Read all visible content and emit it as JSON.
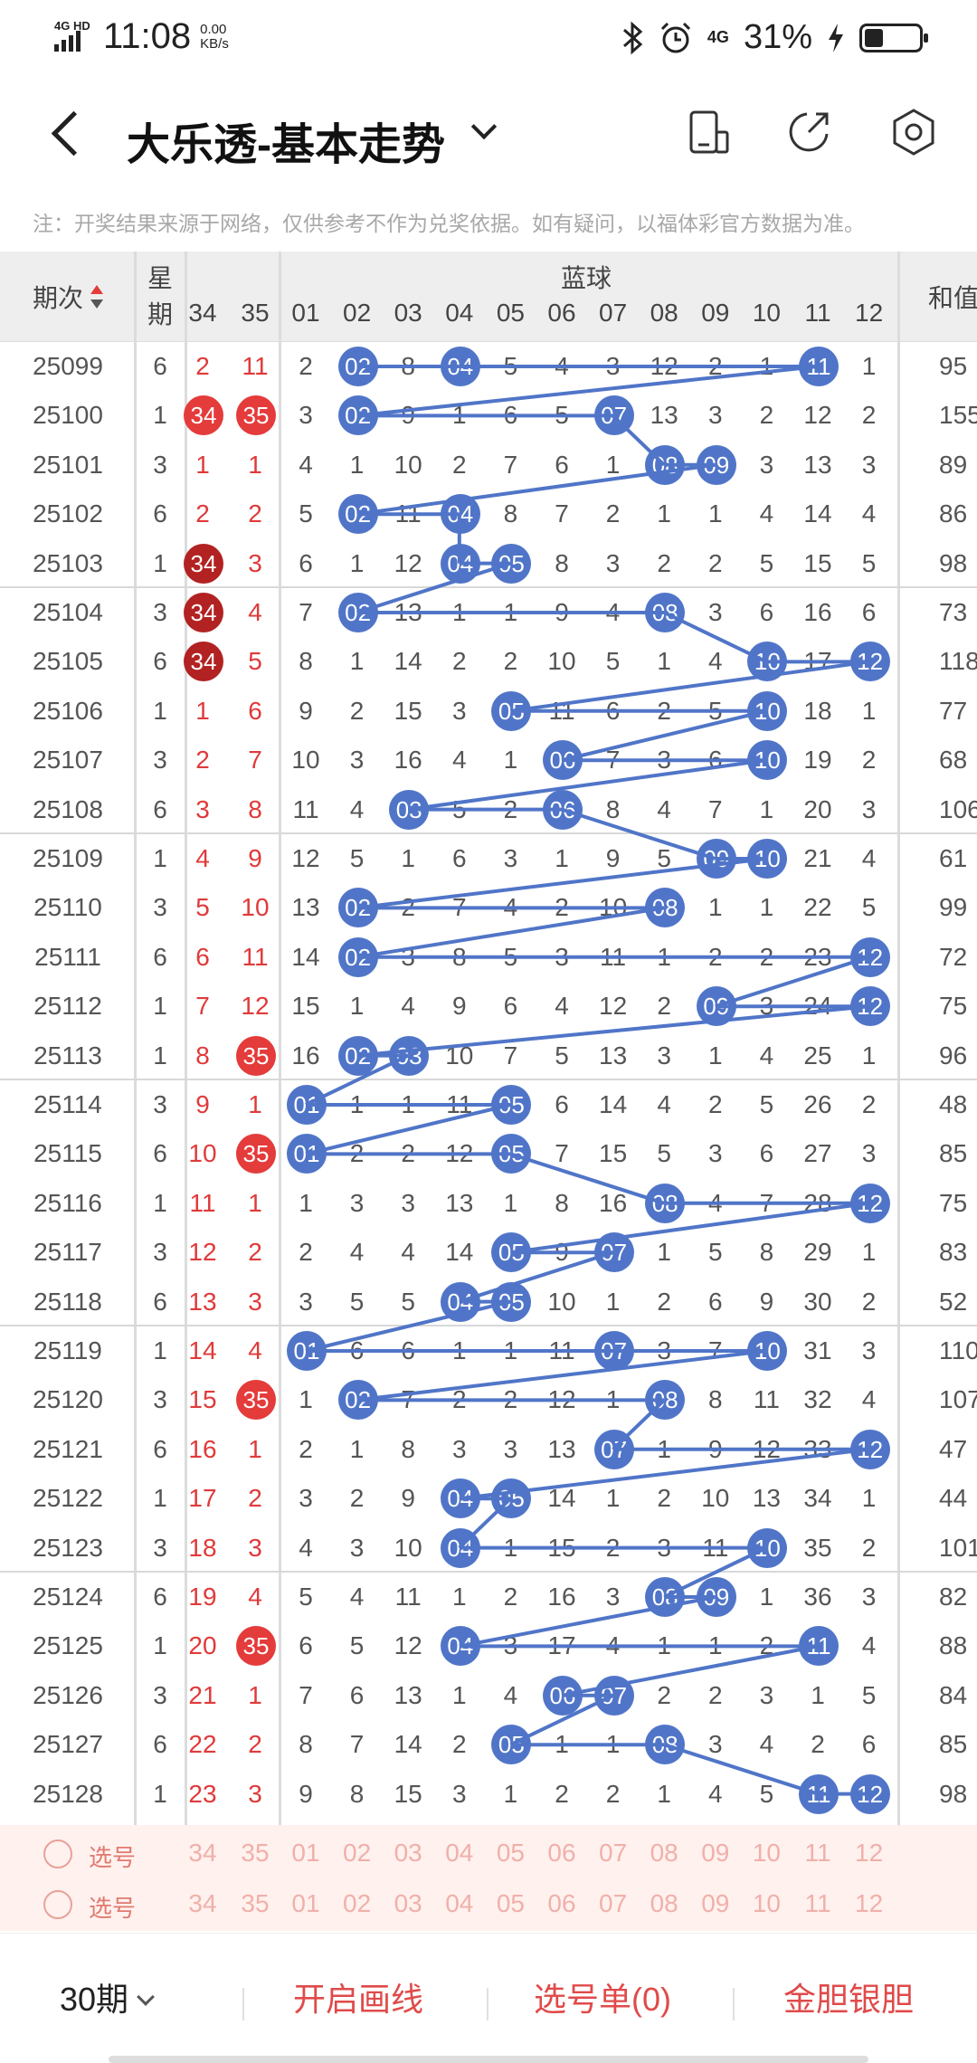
{
  "status": {
    "signal_label": "4G HD",
    "time": "11:08",
    "speed": "0.00",
    "speed_unit": "KB/s",
    "net": "4G",
    "battery": "31%",
    "battery_level": 0.31
  },
  "header": {
    "title": "大乐透-基本走势"
  },
  "notice": "注：开奖结果来源于网络，仅供参考不作为兑奖依据。如有疑问，以福体彩官方数据为准。",
  "table": {
    "col_issue": "期次",
    "col_week_1": "星",
    "col_week_2": "期",
    "col_sum": "和值",
    "blue_group": "蓝球",
    "front_headers": [
      "34",
      "35"
    ],
    "blue_headers": [
      "01",
      "02",
      "03",
      "04",
      "05",
      "06",
      "07",
      "08",
      "09",
      "10",
      "11",
      "12"
    ],
    "rows": [
      {
        "issue": "25099",
        "week": "6",
        "f34": "2",
        "f35": "11",
        "blue": [
          "2",
          "02",
          "8",
          "04",
          "5",
          "4",
          "3",
          "12",
          "2",
          "1",
          "11",
          "1"
        ],
        "sum": "95"
      },
      {
        "issue": "25100",
        "week": "1",
        "f34": "34",
        "f35": "35",
        "blue": [
          "3",
          "02",
          "9",
          "1",
          "6",
          "5",
          "07",
          "13",
          "3",
          "2",
          "12",
          "2"
        ],
        "sum": "155"
      },
      {
        "issue": "25101",
        "week": "3",
        "f34": "1",
        "f35": "1",
        "blue": [
          "4",
          "1",
          "10",
          "2",
          "7",
          "6",
          "1",
          "08",
          "09",
          "3",
          "13",
          "3"
        ],
        "sum": "89"
      },
      {
        "issue": "25102",
        "week": "6",
        "f34": "2",
        "f35": "2",
        "blue": [
          "5",
          "02",
          "11",
          "04",
          "8",
          "7",
          "2",
          "1",
          "1",
          "4",
          "14",
          "4"
        ],
        "sum": "86"
      },
      {
        "issue": "25103",
        "week": "1",
        "f34": "34",
        "f35": "3",
        "blue": [
          "6",
          "1",
          "12",
          "04",
          "05",
          "8",
          "3",
          "2",
          "2",
          "5",
          "15",
          "5"
        ],
        "sum": "98"
      },
      {
        "issue": "25104",
        "week": "3",
        "f34": "34",
        "f35": "4",
        "blue": [
          "7",
          "02",
          "13",
          "1",
          "1",
          "9",
          "4",
          "08",
          "3",
          "6",
          "16",
          "6"
        ],
        "sum": "73"
      },
      {
        "issue": "25105",
        "week": "6",
        "f34": "34",
        "f35": "5",
        "blue": [
          "8",
          "1",
          "14",
          "2",
          "2",
          "10",
          "5",
          "1",
          "4",
          "10",
          "17",
          "12"
        ],
        "sum": "118"
      },
      {
        "issue": "25106",
        "week": "1",
        "f34": "1",
        "f35": "6",
        "blue": [
          "9",
          "2",
          "15",
          "3",
          "05",
          "11",
          "6",
          "2",
          "5",
          "10",
          "18",
          "1"
        ],
        "sum": "77"
      },
      {
        "issue": "25107",
        "week": "3",
        "f34": "2",
        "f35": "7",
        "blue": [
          "10",
          "3",
          "16",
          "4",
          "1",
          "06",
          "7",
          "3",
          "6",
          "10",
          "19",
          "2"
        ],
        "sum": "68"
      },
      {
        "issue": "25108",
        "week": "6",
        "f34": "3",
        "f35": "8",
        "blue": [
          "11",
          "4",
          "03",
          "5",
          "2",
          "06",
          "8",
          "4",
          "7",
          "1",
          "20",
          "3"
        ],
        "sum": "106"
      },
      {
        "issue": "25109",
        "week": "1",
        "f34": "4",
        "f35": "9",
        "blue": [
          "12",
          "5",
          "1",
          "6",
          "3",
          "1",
          "9",
          "5",
          "09",
          "10",
          "21",
          "4"
        ],
        "sum": "61"
      },
      {
        "issue": "25110",
        "week": "3",
        "f34": "5",
        "f35": "10",
        "blue": [
          "13",
          "02",
          "2",
          "7",
          "4",
          "2",
          "10",
          "08",
          "1",
          "1",
          "22",
          "5"
        ],
        "sum": "99"
      },
      {
        "issue": "25111",
        "week": "6",
        "f34": "6",
        "f35": "11",
        "blue": [
          "14",
          "02",
          "3",
          "8",
          "5",
          "3",
          "11",
          "1",
          "2",
          "2",
          "23",
          "12"
        ],
        "sum": "72"
      },
      {
        "issue": "25112",
        "week": "1",
        "f34": "7",
        "f35": "12",
        "blue": [
          "15",
          "1",
          "4",
          "9",
          "6",
          "4",
          "12",
          "2",
          "09",
          "3",
          "24",
          "12"
        ],
        "sum": "75"
      },
      {
        "issue": "25113",
        "week": "1",
        "f34": "8",
        "f35": "35",
        "blue": [
          "16",
          "02",
          "03",
          "10",
          "7",
          "5",
          "13",
          "3",
          "1",
          "4",
          "25",
          "1"
        ],
        "sum": "96"
      },
      {
        "issue": "25114",
        "week": "3",
        "f34": "9",
        "f35": "1",
        "blue": [
          "01",
          "1",
          "1",
          "11",
          "05",
          "6",
          "14",
          "4",
          "2",
          "5",
          "26",
          "2"
        ],
        "sum": "48"
      },
      {
        "issue": "25115",
        "week": "6",
        "f34": "10",
        "f35": "35",
        "blue": [
          "01",
          "2",
          "2",
          "12",
          "05",
          "7",
          "15",
          "5",
          "3",
          "6",
          "27",
          "3"
        ],
        "sum": "85"
      },
      {
        "issue": "25116",
        "week": "1",
        "f34": "11",
        "f35": "1",
        "blue": [
          "1",
          "3",
          "3",
          "13",
          "1",
          "8",
          "16",
          "08",
          "4",
          "7",
          "28",
          "12"
        ],
        "sum": "75"
      },
      {
        "issue": "25117",
        "week": "3",
        "f34": "12",
        "f35": "2",
        "blue": [
          "2",
          "4",
          "4",
          "14",
          "05",
          "9",
          "07",
          "1",
          "5",
          "8",
          "29",
          "1"
        ],
        "sum": "83"
      },
      {
        "issue": "25118",
        "week": "6",
        "f34": "13",
        "f35": "3",
        "blue": [
          "3",
          "5",
          "5",
          "04",
          "05",
          "10",
          "1",
          "2",
          "6",
          "9",
          "30",
          "2"
        ],
        "sum": "52"
      },
      {
        "issue": "25119",
        "week": "1",
        "f34": "14",
        "f35": "4",
        "blue": [
          "01",
          "6",
          "6",
          "1",
          "1",
          "11",
          "07",
          "3",
          "7",
          "10",
          "31",
          "3"
        ],
        "sum": "110"
      },
      {
        "issue": "25120",
        "week": "3",
        "f34": "15",
        "f35": "35",
        "blue": [
          "1",
          "02",
          "7",
          "2",
          "2",
          "12",
          "1",
          "08",
          "8",
          "11",
          "32",
          "4"
        ],
        "sum": "107"
      },
      {
        "issue": "25121",
        "week": "6",
        "f34": "16",
        "f35": "1",
        "blue": [
          "2",
          "1",
          "8",
          "3",
          "3",
          "13",
          "07",
          "1",
          "9",
          "12",
          "33",
          "12"
        ],
        "sum": "47"
      },
      {
        "issue": "25122",
        "week": "1",
        "f34": "17",
        "f35": "2",
        "blue": [
          "3",
          "2",
          "9",
          "04",
          "05",
          "14",
          "1",
          "2",
          "10",
          "13",
          "34",
          "1"
        ],
        "sum": "44"
      },
      {
        "issue": "25123",
        "week": "3",
        "f34": "18",
        "f35": "3",
        "blue": [
          "4",
          "3",
          "10",
          "04",
          "1",
          "15",
          "2",
          "3",
          "11",
          "10",
          "35",
          "2"
        ],
        "sum": "101"
      },
      {
        "issue": "25124",
        "week": "6",
        "f34": "19",
        "f35": "4",
        "blue": [
          "5",
          "4",
          "11",
          "1",
          "2",
          "16",
          "3",
          "08",
          "09",
          "1",
          "36",
          "3"
        ],
        "sum": "82"
      },
      {
        "issue": "25125",
        "week": "1",
        "f34": "20",
        "f35": "35",
        "blue": [
          "6",
          "5",
          "12",
          "04",
          "3",
          "17",
          "4",
          "1",
          "1",
          "2",
          "11",
          "4"
        ],
        "sum": "88"
      },
      {
        "issue": "25126",
        "week": "3",
        "f34": "21",
        "f35": "1",
        "blue": [
          "7",
          "6",
          "13",
          "1",
          "4",
          "06",
          "07",
          "2",
          "2",
          "3",
          "1",
          "5"
        ],
        "sum": "84"
      },
      {
        "issue": "25127",
        "week": "6",
        "f34": "22",
        "f35": "2",
        "blue": [
          "8",
          "7",
          "14",
          "2",
          "05",
          "1",
          "1",
          "08",
          "3",
          "4",
          "2",
          "6"
        ],
        "sum": "85"
      },
      {
        "issue": "25128",
        "week": "1",
        "f34": "23",
        "f35": "3",
        "blue": [
          "9",
          "8",
          "15",
          "3",
          "1",
          "2",
          "2",
          "1",
          "4",
          "5",
          "11",
          "12"
        ],
        "sum": "98"
      }
    ],
    "pick_rows": [
      {
        "label": "选号",
        "nums": [
          "34",
          "35",
          "01",
          "02",
          "03",
          "04",
          "05",
          "06",
          "07",
          "08",
          "09",
          "10",
          "11",
          "12"
        ]
      },
      {
        "label": "选号",
        "nums": [
          "34",
          "35",
          "01",
          "02",
          "03",
          "04",
          "05",
          "06",
          "07",
          "08",
          "09",
          "10",
          "11",
          "12"
        ]
      }
    ]
  },
  "footer": {
    "period": "30期",
    "draw": "开启画线",
    "picks": "选号单(0)",
    "gold": "金胆银胆"
  },
  "colors": {
    "blue_ball": "#5075c8",
    "red_ball": "#e43b3b",
    "dark_red_ball": "#b22222",
    "accent": "#e04a4a"
  },
  "icons": [
    "back-icon",
    "dropdown-icon",
    "phone-icon",
    "share-icon",
    "settings-icon"
  ]
}
